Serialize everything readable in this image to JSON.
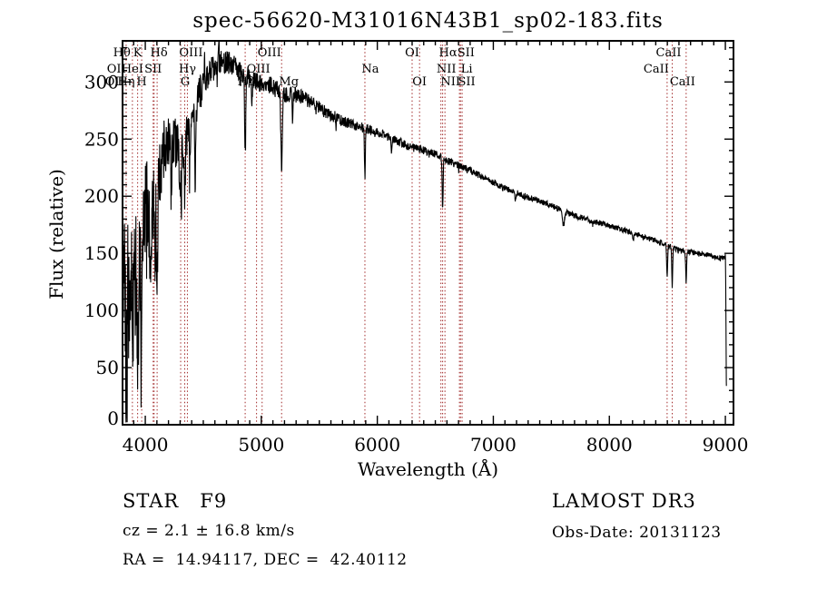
{
  "title": "spec-56620-M31016N43B1_sp02-183.fits",
  "footer": {
    "object_class": "STAR   F9",
    "cz_line": "cz = 2.1 ± 16.8 km/s",
    "coord_line": "RA =  14.94117, DEC =  42.40112",
    "survey": "LAMOST DR3",
    "obs_date": "Obs-Date: 20131123"
  },
  "chart_data": {
    "type": "line",
    "title": "spec-56620-M31016N43B1_sp02-183.fits",
    "xlabel": "Wavelength (Å)",
    "ylabel": "Flux (relative)",
    "xlim": [
      3804,
      9070
    ],
    "ylim": [
      0,
      336
    ],
    "x_ticks": [
      4000,
      5000,
      6000,
      7000,
      8000,
      9000
    ],
    "y_ticks": [
      0,
      50,
      100,
      150,
      200,
      250,
      300
    ],
    "x_minor_step": 100,
    "y_minor_step": 10,
    "grid": false,
    "legend": null,
    "line_color": "#000000",
    "marker_line_color": "#a22b2b",
    "dotted_lines": [
      3798,
      3835,
      3889,
      3934,
      3969,
      4068,
      4076,
      4102,
      4305,
      4340,
      4363,
      4861,
      4959,
      5007,
      5175,
      5893,
      6300,
      6364,
      6548,
      6563,
      6583,
      6708,
      6717,
      6731,
      8498,
      8542,
      8662
    ],
    "line_labels": [
      {
        "label": "Hθ",
        "wl": 3798,
        "row": 1,
        "dx": 0
      },
      {
        "label": "K",
        "wl": 3934,
        "row": 1,
        "dx": 0
      },
      {
        "label": "Hδ",
        "wl": 4102,
        "row": 1,
        "dx": 2
      },
      {
        "label": "OIII",
        "wl": 4363,
        "row": 1,
        "dx": 4
      },
      {
        "label": "OIII",
        "wl": 5007,
        "row": 1,
        "dx": 8
      },
      {
        "label": "OI",
        "wl": 6300,
        "row": 1,
        "dx": 0
      },
      {
        "label": "Hα",
        "wl": 6563,
        "row": 1,
        "dx": 6
      },
      {
        "label": "SII",
        "wl": 6717,
        "row": 1,
        "dx": 6
      },
      {
        "label": "CaII",
        "wl": 8542,
        "row": 1,
        "dx": -4
      },
      {
        "label": "OII",
        "wl": 3727,
        "row": 2,
        "dx": 3
      },
      {
        "label": "HeI",
        "wl": 3889,
        "row": 2,
        "dx": 0
      },
      {
        "label": "SII",
        "wl": 4068,
        "row": 2,
        "dx": 0
      },
      {
        "label": "Hγ",
        "wl": 4340,
        "row": 2,
        "dx": 3
      },
      {
        "label": "OIII",
        "wl": 4959,
        "row": 2,
        "dx": 2
      },
      {
        "label": "Na",
        "wl": 5893,
        "row": 2,
        "dx": 6
      },
      {
        "label": "NII",
        "wl": 6548,
        "row": 2,
        "dx": 6
      },
      {
        "label": "Li",
        "wl": 6708,
        "row": 2,
        "dx": 8
      },
      {
        "label": "CaII",
        "wl": 8498,
        "row": 2,
        "dx": -12
      },
      {
        "label": "OII",
        "wl": 3727,
        "row": 3,
        "dx": 1
      },
      {
        "label": "Hη",
        "wl": 3835,
        "row": 3,
        "dx": 0
      },
      {
        "label": "H",
        "wl": 3969,
        "row": 3,
        "dx": 0
      },
      {
        "label": "G",
        "wl": 4305,
        "row": 3,
        "dx": 5
      },
      {
        "label": "Hβ",
        "wl": 4861,
        "row": 3,
        "dx": 1
      },
      {
        "label": "Mg",
        "wl": 5175,
        "row": 3,
        "dx": 8
      },
      {
        "label": "OI",
        "wl": 6364,
        "row": 3,
        "dx": 0
      },
      {
        "label": "NII",
        "wl": 6583,
        "row": 3,
        "dx": 6
      },
      {
        "label": "SII",
        "wl": 6731,
        "row": 3,
        "dx": 5
      },
      {
        "label": "CaII",
        "wl": 8662,
        "row": 3,
        "dx": -4
      }
    ],
    "continuum_points": [
      [
        3804,
        150
      ],
      [
        3830,
        125
      ],
      [
        3855,
        115
      ],
      [
        3885,
        160
      ],
      [
        3915,
        150
      ],
      [
        3945,
        135
      ],
      [
        3975,
        155
      ],
      [
        4005,
        195
      ],
      [
        4040,
        180
      ],
      [
        4080,
        190
      ],
      [
        4130,
        225
      ],
      [
        4180,
        248
      ],
      [
        4240,
        250
      ],
      [
        4300,
        240
      ],
      [
        4360,
        255
      ],
      [
        4420,
        272
      ],
      [
        4480,
        295
      ],
      [
        4540,
        306
      ],
      [
        4600,
        314
      ],
      [
        4660,
        318
      ],
      [
        4720,
        317
      ],
      [
        4780,
        313
      ],
      [
        4840,
        308
      ],
      [
        4900,
        306
      ],
      [
        4960,
        300
      ],
      [
        5020,
        297
      ],
      [
        5080,
        297
      ],
      [
        5140,
        293
      ],
      [
        5200,
        289
      ],
      [
        5280,
        289
      ],
      [
        5360,
        286
      ],
      [
        5440,
        281
      ],
      [
        5520,
        276
      ],
      [
        5600,
        271
      ],
      [
        5700,
        266
      ],
      [
        5800,
        262
      ],
      [
        5900,
        259
      ],
      [
        6000,
        257
      ],
      [
        6100,
        251
      ],
      [
        6200,
        247
      ],
      [
        6300,
        243
      ],
      [
        6400,
        240
      ],
      [
        6500,
        237
      ],
      [
        6600,
        231
      ],
      [
        6700,
        227
      ],
      [
        6800,
        223
      ],
      [
        6900,
        217
      ],
      [
        7000,
        212
      ],
      [
        7100,
        207
      ],
      [
        7200,
        203
      ],
      [
        7300,
        199
      ],
      [
        7400,
        196
      ],
      [
        7500,
        192
      ],
      [
        7600,
        187
      ],
      [
        7700,
        183
      ],
      [
        7800,
        180
      ],
      [
        7900,
        177
      ],
      [
        8000,
        174
      ],
      [
        8100,
        171
      ],
      [
        8200,
        168
      ],
      [
        8300,
        164
      ],
      [
        8400,
        161
      ],
      [
        8500,
        157
      ],
      [
        8600,
        153
      ],
      [
        8700,
        151
      ],
      [
        8800,
        150
      ],
      [
        8900,
        147
      ],
      [
        8960,
        145
      ],
      [
        9000,
        147
      ]
    ],
    "absorption_lines": [
      [
        3835,
        85,
        5
      ],
      [
        3889,
        70,
        5
      ],
      [
        3934,
        80,
        6
      ],
      [
        3969,
        75,
        6
      ],
      [
        4045,
        55,
        4
      ],
      [
        4102,
        70,
        6
      ],
      [
        4227,
        30,
        4
      ],
      [
        4305,
        40,
        7
      ],
      [
        4340,
        50,
        5
      ],
      [
        4383,
        30,
        4
      ],
      [
        4430,
        70,
        3
      ],
      [
        4861,
        72,
        5
      ],
      [
        4920,
        25,
        4
      ],
      [
        5175,
        68,
        6
      ],
      [
        5270,
        22,
        4
      ],
      [
        5893,
        42,
        4
      ],
      [
        6122,
        12,
        4
      ],
      [
        6563,
        44,
        4
      ],
      [
        7190,
        8,
        5
      ],
      [
        7605,
        12,
        10
      ],
      [
        8205,
        8,
        5
      ],
      [
        8498,
        28,
        4
      ],
      [
        8542,
        34,
        4
      ],
      [
        8662,
        26,
        4
      ]
    ],
    "emission_spikes": [
      [
        4510,
        18,
        2
      ],
      [
        4634,
        25,
        2
      ]
    ],
    "noise_profile": [
      [
        3804,
        65
      ],
      [
        3900,
        55
      ],
      [
        4000,
        42
      ],
      [
        4100,
        32
      ],
      [
        4200,
        26
      ],
      [
        4350,
        20
      ],
      [
        4500,
        13
      ],
      [
        4650,
        11
      ],
      [
        4800,
        9
      ],
      [
        5000,
        8
      ],
      [
        5300,
        7
      ],
      [
        5600,
        5.5
      ],
      [
        5900,
        4.5
      ],
      [
        6200,
        4
      ],
      [
        6600,
        3.2
      ],
      [
        7000,
        2.8
      ],
      [
        7600,
        2.6
      ],
      [
        8200,
        2.4
      ],
      [
        9000,
        2.4
      ]
    ],
    "spike_zones": [
      [
        4150,
        0.1,
        2.6
      ],
      [
        4450,
        0.06,
        2.2
      ],
      [
        5300,
        0.035,
        2.0
      ],
      [
        9100,
        0.015,
        1.8
      ]
    ],
    "edge_drop": [
      [
        9000,
        147
      ],
      [
        9003,
        128
      ],
      [
        9006,
        80
      ],
      [
        9008,
        38
      ],
      [
        9009,
        34
      ]
    ]
  }
}
